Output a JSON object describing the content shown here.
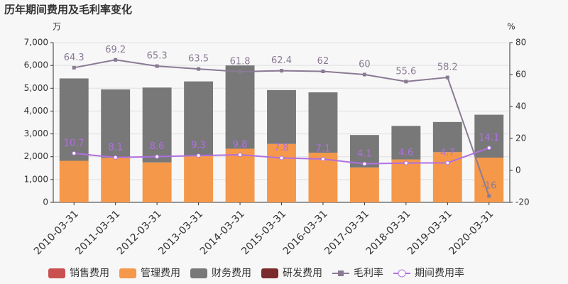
{
  "chart_data": {
    "type": "bar-line",
    "title": "历年期间费用及毛利率变化",
    "y_unit": "万",
    "y2_unit": "%",
    "categories": [
      "2010-03-31",
      "2011-03-31",
      "2012-03-31",
      "2013-03-31",
      "2014-03-31",
      "2015-03-31",
      "2016-03-31",
      "2017-03-31",
      "2018-03-31",
      "2019-03-31",
      "2020-03-31"
    ],
    "series": [
      {
        "name": "销售费用",
        "type": "bar",
        "color": "#c9504f",
        "values": [
          0,
          0,
          0,
          0,
          0,
          0,
          0,
          0,
          0,
          0,
          0
        ]
      },
      {
        "name": "管理费用",
        "type": "bar",
        "color": "#f5984a",
        "values": [
          1820,
          1950,
          1750,
          2020,
          2350,
          2560,
          2170,
          1530,
          1880,
          2200,
          1960
        ]
      },
      {
        "name": "财务费用",
        "type": "bar",
        "color": "#787878",
        "values": [
          3610,
          3000,
          3280,
          3280,
          3650,
          2360,
          2650,
          1420,
          1470,
          1320,
          1880
        ]
      },
      {
        "name": "研发费用",
        "type": "bar",
        "color": "#7a2c2c",
        "values": [
          0,
          0,
          0,
          0,
          0,
          0,
          0,
          0,
          0,
          0,
          0
        ]
      },
      {
        "name": "毛利率",
        "type": "line",
        "axis": "y2",
        "color": "#8a7a94",
        "values": [
          64.3,
          69.2,
          65.3,
          63.5,
          61.8,
          62.4,
          62,
          60,
          55.6,
          58.2,
          -16
        ]
      },
      {
        "name": "期间费用率",
        "type": "line",
        "axis": "y2",
        "color": "#b070e0",
        "values": [
          10.7,
          8.1,
          8.6,
          9.3,
          9.8,
          7.8,
          7.1,
          4.1,
          4.6,
          4.7,
          14.1
        ]
      }
    ],
    "ylim": [
      0,
      7000
    ],
    "yticks": [
      0,
      {
        "value": 1000,
        "label": "1,000"
      },
      {
        "value": 2000,
        "label": "2,000"
      },
      {
        "value": 3000,
        "label": "3,000"
      },
      {
        "value": 4000,
        "label": "4,000"
      },
      {
        "value": 5000,
        "label": "5,000"
      },
      {
        "value": 6000,
        "label": "6,000"
      },
      {
        "value": 7000,
        "label": "7,000"
      }
    ],
    "y2lim": [
      -20,
      80
    ],
    "y2ticks": [
      -20,
      0,
      20,
      40,
      60,
      80
    ],
    "grid": true
  }
}
